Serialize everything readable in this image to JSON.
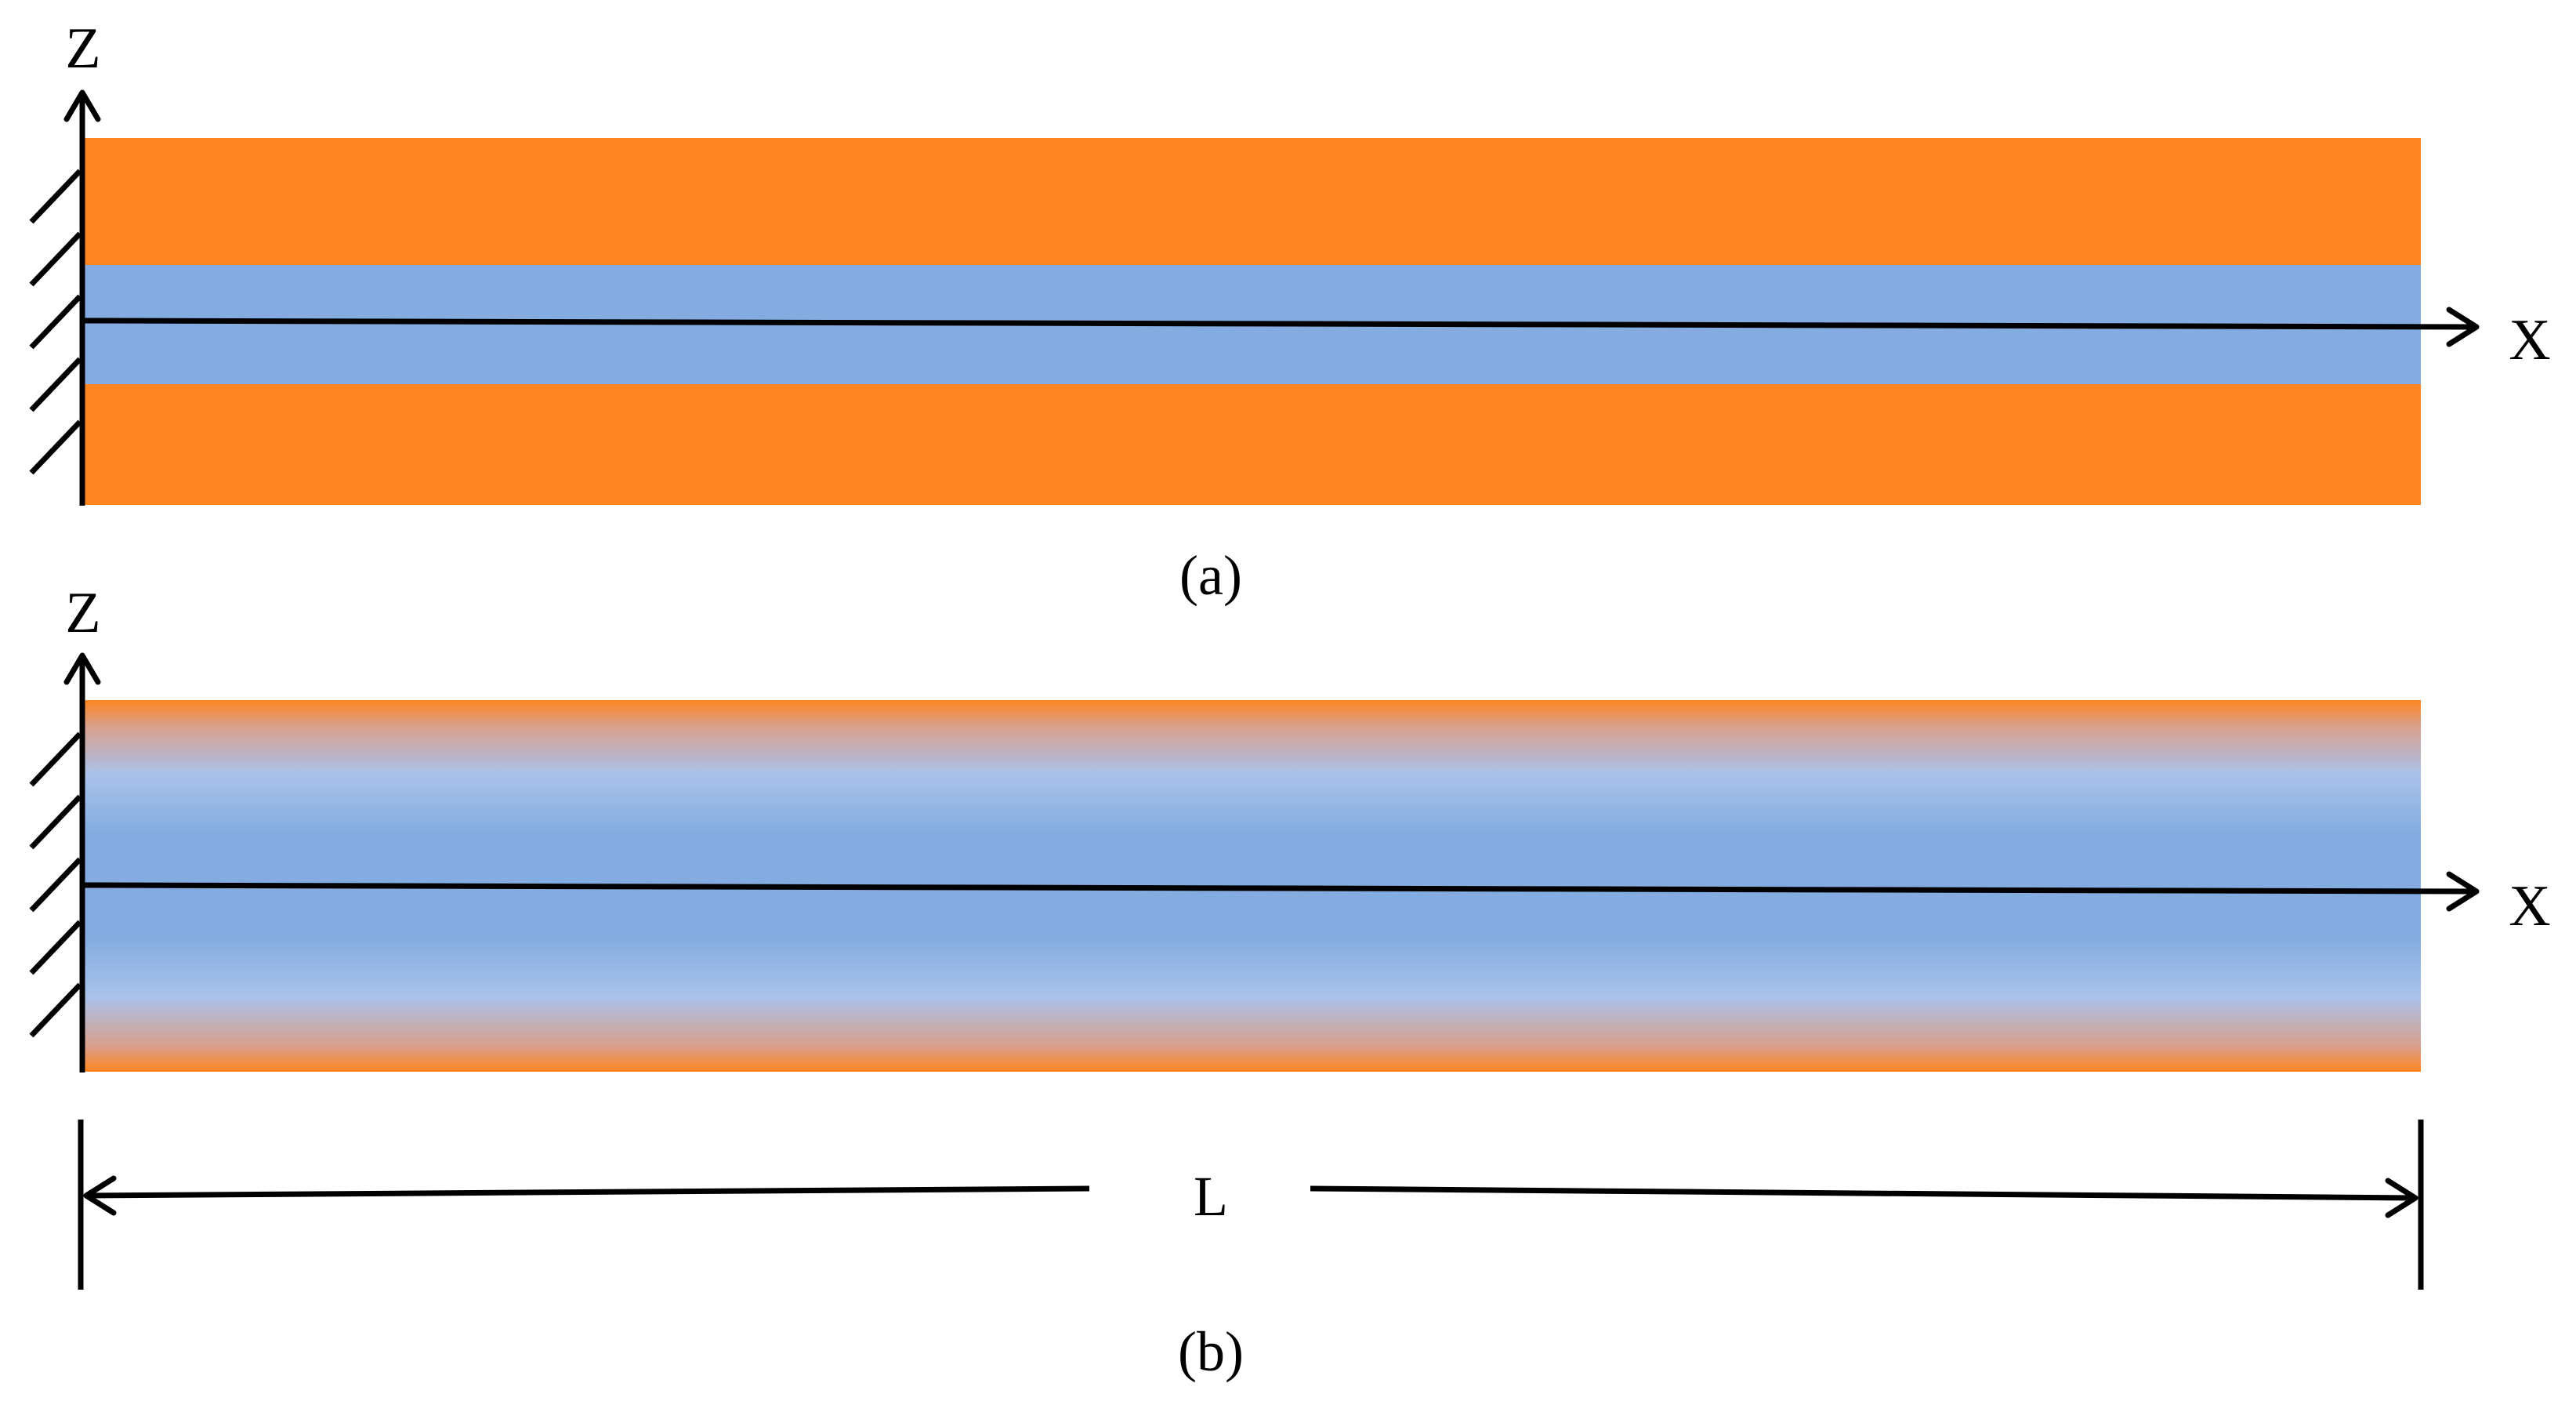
{
  "panel_a": {
    "z_axis_label": "Z",
    "x_axis_label": "X",
    "caption": "(a)"
  },
  "panel_b": {
    "z_axis_label": "Z",
    "x_axis_label": "X",
    "caption": "(b)"
  },
  "dimension": {
    "length_label": "L"
  },
  "colors": {
    "outer_layer": "#FF8522",
    "core_layer": "#84ACE0",
    "transition_light": "#A9C2EA",
    "ink": "#000000"
  }
}
